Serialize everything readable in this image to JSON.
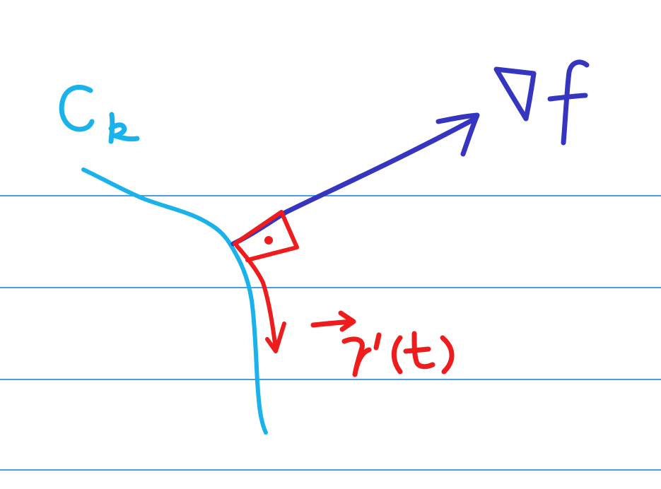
{
  "labels": {
    "curve": "C",
    "curve_subscript": "k",
    "gradient": "∇f",
    "tangent_arrow": "→",
    "tangent": "r′(t)"
  },
  "colors": {
    "paper": "#ffffff",
    "rule_lines": "#4a9ee6",
    "curve": "#19b2ea",
    "gradient": "#3535c0",
    "tangent": "#ee1c1c"
  }
}
